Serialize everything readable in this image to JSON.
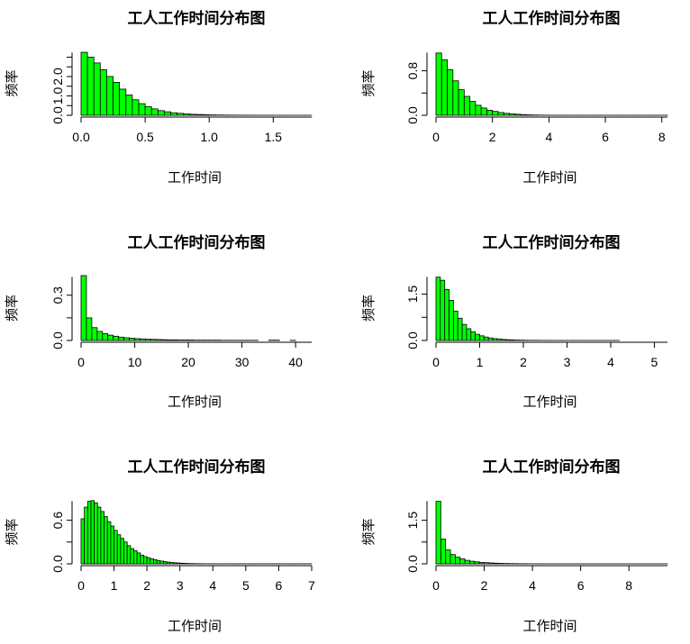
{
  "chart_data": [
    {
      "type": "bar",
      "title": "工人工作时间分布图",
      "xlabel": "工作时间",
      "ylabel": "频率",
      "xlim": [
        0,
        1.8
      ],
      "ylim": [
        0,
        3.3
      ],
      "xticks": [
        "0.0",
        "0.5",
        "1.0",
        "1.5"
      ],
      "xtick_values": [
        0,
        0.5,
        1.0,
        1.5
      ],
      "yticks": [
        "0.0",
        "1.0",
        "2.0"
      ],
      "ytick_values": [
        0,
        1.0,
        2.0
      ],
      "bin_width": 0.05,
      "bins_start": 0,
      "values": [
        3.25,
        3.0,
        2.7,
        2.35,
        2.0,
        1.7,
        1.35,
        1.05,
        0.8,
        0.6,
        0.45,
        0.33,
        0.24,
        0.18,
        0.13,
        0.1,
        0.07,
        0.05,
        0.04,
        0.03,
        0.02,
        0.015,
        0.01,
        0.008,
        0.006,
        0.005,
        0.004,
        0.003,
        0.002,
        0.002,
        0.001,
        0.001,
        0.001,
        0.001,
        0.001,
        0.001
      ],
      "color": "#00ff00"
    },
    {
      "type": "bar",
      "title": "工人工作时间分布图",
      "xlabel": "工作时间",
      "ylabel": "频率",
      "xlim": [
        0,
        8.2
      ],
      "ylim": [
        0,
        1.15
      ],
      "xticks": [
        "0",
        "2",
        "4",
        "6",
        "8"
      ],
      "xtick_values": [
        0,
        2,
        4,
        6,
        8
      ],
      "yticks": [
        "0.0",
        "0.8"
      ],
      "ytick_values": [
        0,
        0.8
      ],
      "bin_width": 0.2,
      "bins_start": 0,
      "values": [
        1.12,
        1.0,
        0.82,
        0.62,
        0.46,
        0.34,
        0.25,
        0.18,
        0.13,
        0.09,
        0.07,
        0.05,
        0.035,
        0.025,
        0.018,
        0.012,
        0.008,
        0.005,
        0.003,
        0.002,
        0.001,
        0.001,
        0.001,
        0.001,
        0.001,
        0.001,
        0.001,
        0.001,
        0.001,
        0.001,
        0.001,
        0.001,
        0.001,
        0.001,
        0.001,
        0.001,
        0.001,
        0.001,
        0.001,
        0.001,
        0.001
      ],
      "color": "#00ff00"
    },
    {
      "type": "bar",
      "title": "工人工作时间分布图",
      "xlabel": "工作时间",
      "ylabel": "频率",
      "xlim": [
        0,
        43
      ],
      "ylim": [
        0,
        0.43
      ],
      "xticks": [
        "0",
        "10",
        "20",
        "30",
        "40"
      ],
      "xtick_values": [
        0,
        10,
        20,
        30,
        40
      ],
      "yticks": [
        "0.0",
        "0.3"
      ],
      "ytick_values": [
        0,
        0.3
      ],
      "bin_width": 1,
      "bins_start": 0,
      "values": [
        0.43,
        0.15,
        0.085,
        0.06,
        0.045,
        0.035,
        0.028,
        0.022,
        0.018,
        0.015,
        0.012,
        0.01,
        0.008,
        0.007,
        0.006,
        0.005,
        0.004,
        0.004,
        0.003,
        0.003,
        0.003,
        0.002,
        0.002,
        0.002,
        0.002,
        0.002,
        0.001,
        0.001,
        0.001,
        0.001,
        0.001,
        0.001,
        0.001,
        0,
        0,
        0.002,
        0.002,
        0,
        0,
        0.001
      ],
      "color": "#00ff00"
    },
    {
      "type": "bar",
      "title": "工人工作时间分布图",
      "xlabel": "工作时间",
      "ylabel": "频率",
      "xlim": [
        0,
        5.3
      ],
      "ylim": [
        0,
        2.1
      ],
      "xticks": [
        "0",
        "1",
        "2",
        "3",
        "4",
        "5"
      ],
      "xtick_values": [
        0,
        1,
        2,
        3,
        4,
        5
      ],
      "yticks": [
        "0.0",
        "1.5"
      ],
      "ytick_values": [
        0,
        1.5
      ],
      "bin_width": 0.1,
      "bins_start": 0,
      "values": [
        2.05,
        1.95,
        1.65,
        1.3,
        0.95,
        0.72,
        0.52,
        0.38,
        0.28,
        0.2,
        0.15,
        0.11,
        0.08,
        0.06,
        0.045,
        0.033,
        0.025,
        0.018,
        0.013,
        0.01,
        0.007,
        0.005,
        0.004,
        0.003,
        0.002,
        0.002,
        0.001,
        0.001,
        0.001,
        0.001,
        0.001,
        0.001,
        0.001,
        0.001,
        0.001,
        0.001,
        0.001,
        0.001,
        0.001,
        0.001,
        0.001,
        0.001
      ],
      "color": "#00ff00"
    },
    {
      "type": "bar",
      "title": "工人工作时间分布图",
      "xlabel": "工作时间",
      "ylabel": "频率",
      "xlim": [
        0,
        7
      ],
      "ylim": [
        0,
        0.88
      ],
      "xticks": [
        "0",
        "1",
        "2",
        "3",
        "4",
        "5",
        "6",
        "7"
      ],
      "xtick_values": [
        0,
        1,
        2,
        3,
        4,
        5,
        6,
        7
      ],
      "yticks": [
        "0.0",
        "0.6"
      ],
      "ytick_values": [
        0,
        0.6
      ],
      "bin_width": 0.1,
      "bins_start": 0,
      "values": [
        0.62,
        0.78,
        0.86,
        0.87,
        0.84,
        0.78,
        0.72,
        0.65,
        0.58,
        0.52,
        0.46,
        0.4,
        0.35,
        0.3,
        0.25,
        0.21,
        0.18,
        0.15,
        0.12,
        0.1,
        0.085,
        0.07,
        0.058,
        0.047,
        0.038,
        0.03,
        0.024,
        0.019,
        0.015,
        0.012,
        0.009,
        0.007,
        0.005,
        0.004,
        0.003,
        0.002,
        0.002,
        0.001,
        0.001,
        0.001,
        0.001,
        0.001,
        0.001,
        0.001,
        0.001,
        0.001,
        0.001,
        0.001,
        0.001,
        0.001,
        0.001,
        0.001,
        0.001,
        0.001,
        0.001,
        0.001,
        0.001,
        0.001,
        0.001,
        0.001,
        0.001,
        0.001,
        0.001,
        0.001,
        0.001,
        0.001,
        0.001,
        0.001,
        0.001,
        0.001
      ],
      "color": "#00ff00"
    },
    {
      "type": "bar",
      "title": "工人工作时间分布图",
      "xlabel": "工作时间",
      "ylabel": "频率",
      "xlim": [
        0,
        9.6
      ],
      "ylim": [
        0,
        2.2
      ],
      "xticks": [
        "0",
        "2",
        "4",
        "6",
        "8"
      ],
      "xtick_values": [
        0,
        2,
        4,
        6,
        8
      ],
      "yticks": [
        "0.0",
        "1.5"
      ],
      "ytick_values": [
        0,
        1.5
      ],
      "bin_width": 0.2,
      "bins_start": 0,
      "values": [
        2.15,
        0.85,
        0.48,
        0.32,
        0.23,
        0.17,
        0.12,
        0.09,
        0.07,
        0.05,
        0.04,
        0.03,
        0.022,
        0.016,
        0.012,
        0.009,
        0.007,
        0.005,
        0.004,
        0.003,
        0.002,
        0.002,
        0.001,
        0.001,
        0.001,
        0.001,
        0.001,
        0.001,
        0.001,
        0.001,
        0.001,
        0.001,
        0.001,
        0.001,
        0.001,
        0.001,
        0.001,
        0.001,
        0.001,
        0.001,
        0.001,
        0.001,
        0.001,
        0.001,
        0.001,
        0.001,
        0.001,
        0.001
      ],
      "color": "#00ff00"
    }
  ]
}
